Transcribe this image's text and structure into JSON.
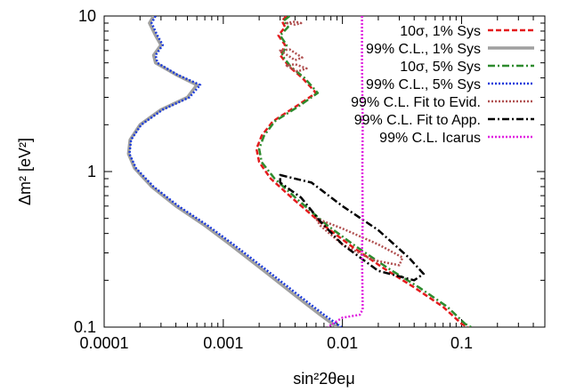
{
  "chart_data": {
    "type": "line",
    "xlabel": "sin²2θeμ",
    "ylabel": "Δm² [eV²]",
    "xscale": "log",
    "yscale": "log",
    "xlim": [
      0.0001,
      0.5
    ],
    "ylim": [
      0.1,
      10
    ],
    "x_ticks": [
      {
        "value": 0.0001,
        "label": "0.0001"
      },
      {
        "value": 0.001,
        "label": "0.001"
      },
      {
        "value": 0.01,
        "label": "0.01"
      },
      {
        "value": 0.1,
        "label": "0.1"
      }
    ],
    "y_ticks": [
      {
        "value": 0.1,
        "label": "0.1"
      },
      {
        "value": 1,
        "label": "1"
      },
      {
        "value": 10,
        "label": "10"
      }
    ],
    "grid": false,
    "legend_position": "top-right",
    "series": [
      {
        "name": "10σ, 1% Sys",
        "color": "#e41a1c",
        "style": "dashed",
        "points": [
          [
            0.0034,
            10
          ],
          [
            0.0031,
            9.3
          ],
          [
            0.0033,
            8.5
          ],
          [
            0.0029,
            7.5
          ],
          [
            0.0033,
            6.5
          ],
          [
            0.003,
            5.6
          ],
          [
            0.0036,
            4.7
          ],
          [
            0.0046,
            4.0
          ],
          [
            0.0054,
            3.5
          ],
          [
            0.006,
            3.2
          ],
          [
            0.004,
            2.6
          ],
          [
            0.0026,
            2.1
          ],
          [
            0.0021,
            1.7
          ],
          [
            0.0019,
            1.4
          ],
          [
            0.002,
            1.15
          ],
          [
            0.0025,
            0.9
          ],
          [
            0.004,
            0.65
          ],
          [
            0.007,
            0.45
          ],
          [
            0.012,
            0.33
          ],
          [
            0.022,
            0.24
          ],
          [
            0.04,
            0.18
          ],
          [
            0.07,
            0.135
          ],
          [
            0.1,
            0.105
          ],
          [
            0.113,
            0.1
          ]
        ]
      },
      {
        "name": "99% C.L., 1% Sys",
        "color": "#a0a0a0",
        "style": "solid",
        "points": [
          [
            0.00026,
            10
          ],
          [
            0.00024,
            9.0
          ],
          [
            0.00027,
            7.5
          ],
          [
            0.0003,
            6.5
          ],
          [
            0.00026,
            5.6
          ],
          [
            0.00027,
            5.0
          ],
          [
            0.0004,
            4.2
          ],
          [
            0.0006,
            3.6
          ],
          [
            0.0005,
            3.0
          ],
          [
            0.0003,
            2.5
          ],
          [
            0.0002,
            2.0
          ],
          [
            0.000165,
            1.6
          ],
          [
            0.00016,
            1.3
          ],
          [
            0.00018,
            1.05
          ],
          [
            0.00025,
            0.8
          ],
          [
            0.0004,
            0.6
          ],
          [
            0.0007,
            0.45
          ],
          [
            0.0012,
            0.33
          ],
          [
            0.0022,
            0.23
          ],
          [
            0.004,
            0.16
          ],
          [
            0.0065,
            0.12
          ],
          [
            0.009,
            0.1
          ]
        ]
      },
      {
        "name": "10σ, 5% Sys",
        "color": "#2e8b2e",
        "style": "dash-dot",
        "points": [
          [
            0.0036,
            10
          ],
          [
            0.0032,
            9.3
          ],
          [
            0.0035,
            8.5
          ],
          [
            0.003,
            7.5
          ],
          [
            0.0034,
            6.5
          ],
          [
            0.0031,
            5.6
          ],
          [
            0.0037,
            4.7
          ],
          [
            0.0048,
            4.0
          ],
          [
            0.0056,
            3.5
          ],
          [
            0.0062,
            3.2
          ],
          [
            0.0042,
            2.6
          ],
          [
            0.0027,
            2.1
          ],
          [
            0.0022,
            1.7
          ],
          [
            0.002,
            1.4
          ],
          [
            0.0021,
            1.15
          ],
          [
            0.0027,
            0.9
          ],
          [
            0.0043,
            0.65
          ],
          [
            0.0075,
            0.45
          ],
          [
            0.013,
            0.33
          ],
          [
            0.024,
            0.24
          ],
          [
            0.044,
            0.18
          ],
          [
            0.076,
            0.135
          ],
          [
            0.107,
            0.105
          ],
          [
            0.12,
            0.1
          ]
        ]
      },
      {
        "name": "99% C.L., 5% Sys",
        "color": "#1a3adb",
        "style": "dotted",
        "points": [
          [
            0.00027,
            10
          ],
          [
            0.00025,
            9.0
          ],
          [
            0.00028,
            7.5
          ],
          [
            0.00031,
            6.5
          ],
          [
            0.00027,
            5.6
          ],
          [
            0.00028,
            5.0
          ],
          [
            0.00041,
            4.2
          ],
          [
            0.00064,
            3.6
          ],
          [
            0.00052,
            3.0
          ],
          [
            0.00031,
            2.5
          ],
          [
            0.000205,
            2.0
          ],
          [
            0.000168,
            1.6
          ],
          [
            0.000163,
            1.3
          ],
          [
            0.000185,
            1.05
          ],
          [
            0.00026,
            0.8
          ],
          [
            0.00042,
            0.6
          ],
          [
            0.00074,
            0.45
          ],
          [
            0.00128,
            0.33
          ],
          [
            0.00235,
            0.23
          ],
          [
            0.0043,
            0.16
          ],
          [
            0.007,
            0.12
          ],
          [
            0.0098,
            0.1
          ]
        ]
      },
      {
        "name": "99% C.L. Fit to Evid.",
        "color": "#b05050",
        "style": "dotted",
        "closed_regions": [
          [
            [
              0.0034,
              9.0
            ],
            [
              0.004,
              8.8
            ],
            [
              0.0045,
              9.0
            ],
            [
              0.004,
              9.2
            ]
          ],
          [
            [
              0.003,
              6.0
            ],
            [
              0.004,
              5.2
            ],
            [
              0.0046,
              5.4
            ],
            [
              0.0036,
              6.1
            ]
          ],
          [
            [
              0.0034,
              4.8
            ],
            [
              0.0042,
              4.4
            ],
            [
              0.005,
              4.6
            ],
            [
              0.004,
              4.9
            ]
          ],
          [
            [
              0.006,
              0.5
            ],
            [
              0.01,
              0.43
            ],
            [
              0.02,
              0.34
            ],
            [
              0.032,
              0.28
            ],
            [
              0.03,
              0.25
            ],
            [
              0.018,
              0.27
            ],
            [
              0.01,
              0.34
            ],
            [
              0.0065,
              0.45
            ]
          ]
        ]
      },
      {
        "name": "99% C.L. Fit to App.",
        "color": "#000000",
        "style": "dash-dot",
        "closed_regions": [
          [
            [
              0.003,
              0.95
            ],
            [
              0.0055,
              0.85
            ],
            [
              0.01,
              0.6
            ],
            [
              0.02,
              0.42
            ],
            [
              0.036,
              0.28
            ],
            [
              0.048,
              0.22
            ],
            [
              0.04,
              0.2
            ],
            [
              0.02,
              0.23
            ],
            [
              0.01,
              0.34
            ],
            [
              0.0065,
              0.48
            ],
            [
              0.0045,
              0.68
            ],
            [
              0.003,
              0.85
            ]
          ]
        ]
      },
      {
        "name": "99% C.L. Icarus",
        "color": "#e020e0",
        "style": "dotted",
        "points": [
          [
            0.0146,
            10
          ],
          [
            0.0146,
            5
          ],
          [
            0.0148,
            2
          ],
          [
            0.0147,
            1
          ],
          [
            0.0148,
            0.5
          ],
          [
            0.0146,
            0.3
          ],
          [
            0.0147,
            0.2
          ],
          [
            0.0148,
            0.13
          ],
          [
            0.014,
            0.12
          ],
          [
            0.01,
            0.115
          ],
          [
            0.0075,
            0.1
          ]
        ]
      }
    ]
  }
}
